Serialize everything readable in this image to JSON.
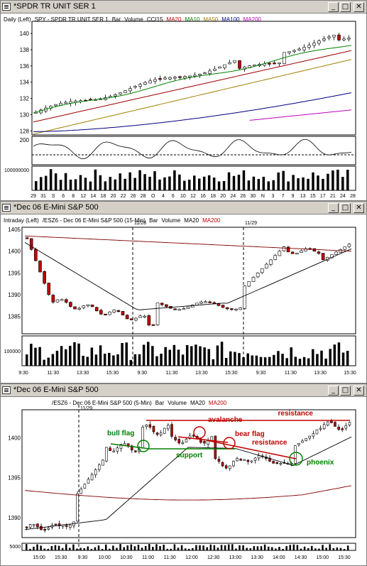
{
  "windows": [
    {
      "title": "*SPDR TR UNIT SER 1",
      "header": [
        "Daily (Left)",
        "SPY - SPDR TR UNIT SER 1",
        "Bar",
        "Volume",
        "CCI15",
        "MA20",
        "MA10",
        "MA50",
        "MA100",
        "MA200"
      ],
      "header_colors": [
        "#000000",
        "#000000",
        "#000000",
        "#000000",
        "#000000",
        "#c00000",
        "#008000",
        "#a08000",
        "#000080",
        "#c000c0"
      ],
      "price_ticks": [
        "140",
        "138",
        "136",
        "134",
        "132",
        "130",
        "128"
      ],
      "cci_tick": "200",
      "volume_tick": "100000000",
      "date_labels": [
        "29",
        "31",
        "S",
        "6",
        "8",
        "12",
        "14",
        "18",
        "20",
        "22",
        "26",
        "28",
        "O",
        "4",
        "6",
        "10",
        "12",
        "16",
        "18",
        "20",
        "24",
        "26",
        "30",
        "N",
        "3",
        "7",
        "9",
        "13",
        "15",
        "17",
        "21",
        "24",
        "28"
      ]
    },
    {
      "title": "*Dec 06 E-Mini S&P 500",
      "header": [
        "Intraday (Left)",
        "/ESZ6 - Dec 06 E-Mini S&P 500 (15-Min)",
        "Bar",
        "Volume",
        "MA20",
        "MA200"
      ],
      "header_colors": [
        "#000000",
        "#000000",
        "#000000",
        "#000000",
        "#000000",
        "#c00000"
      ],
      "price_ticks": [
        "1405",
        "1400",
        "1395",
        "1390",
        "1385"
      ],
      "volume_tick": "100000",
      "day_markers": [
        "11/28",
        "11/29"
      ],
      "time_labels": [
        "9:30",
        "11:30",
        "13:30",
        "15:30",
        "9:30",
        "11:30",
        "13:30",
        "15:30",
        "9:30",
        "11:30",
        "13:30",
        "15:30"
      ]
    },
    {
      "title": "*Dec 06 E-Mini S&P 500",
      "header": [
        "/ESZ6 - Dec 06 E-Mini S&P 500 (5-Min)",
        "Bar",
        "Volume",
        "MA20",
        "MA200"
      ],
      "header_colors": [
        "#000000",
        "#000000",
        "#000000",
        "#000000",
        "#c00000"
      ],
      "price_ticks": [
        "1400",
        "1395",
        "1390"
      ],
      "volume_tick": "5000",
      "day_marker": "11/29",
      "time_labels": [
        "15:00",
        "15:30",
        "9:30",
        "10:00",
        "10:30",
        "11:00",
        "11:30",
        "12:00",
        "12:30",
        "13:00",
        "13:30",
        "14:00",
        "14:30",
        "15:00",
        "15:30"
      ],
      "annotations": {
        "bull_flag": "bull flag",
        "support": "support",
        "avalanche": "avalanche",
        "bear_flag": "bear flag",
        "resistance_top": "resistance",
        "resistance_mid": "resistance",
        "phoenix": "phoenix"
      },
      "annotation_colors": {
        "green": "#008000",
        "red": "#c00000"
      }
    }
  ],
  "window_buttons": {
    "minimize": "_",
    "maximize": "□",
    "close": "✕"
  },
  "colors": {
    "up_candle": "#ffffff",
    "down_candle": "#c00000",
    "ma_red": "#a00000",
    "ma_green": "#008000",
    "ma_olive": "#a08000",
    "ma_navy": "#000080",
    "ma_magenta": "#c000c0"
  }
}
